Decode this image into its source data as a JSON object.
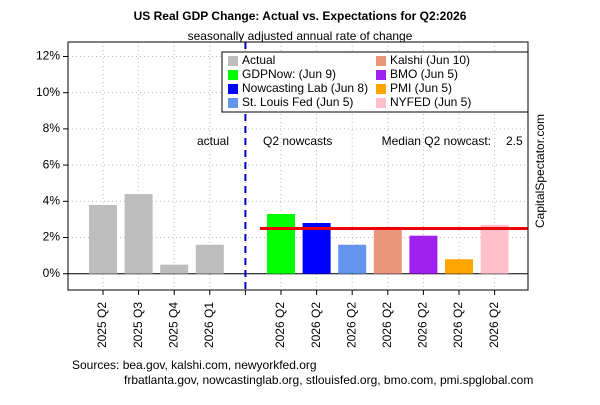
{
  "chart_data": {
    "type": "bar",
    "title": "US Real GDP Change: Actual vs. Expectations for Q2:2026",
    "subtitle": "seasonally adjusted annual rate of change",
    "categories": [
      "2025 Q2",
      "2025 Q3",
      "2025 Q4",
      "2026 Q1",
      null,
      "2026 Q2",
      "2026 Q2",
      "2026 Q2",
      "2026 Q2",
      "2026 Q2",
      "2026 Q2",
      "2026 Q2"
    ],
    "series": [
      {
        "name": "Actual",
        "color": "#bebebe",
        "values": [
          3.8,
          4.4,
          0.5,
          1.6,
          null,
          null,
          null,
          null,
          null,
          null,
          null,
          null
        ]
      },
      {
        "name": "GDPNow: (Jun 9)",
        "color": "#00ff00",
        "values": [
          null,
          null,
          null,
          null,
          null,
          3.3,
          null,
          null,
          null,
          null,
          null,
          null
        ]
      },
      {
        "name": "Nowcasting Lab (Jun 8)",
        "color": "#0000ff",
        "values": [
          null,
          null,
          null,
          null,
          null,
          null,
          2.8,
          null,
          null,
          null,
          null,
          null
        ]
      },
      {
        "name": "St. Louis Fed (Jun 5)",
        "color": "#6495ed",
        "values": [
          null,
          null,
          null,
          null,
          null,
          null,
          null,
          1.6,
          null,
          null,
          null,
          null
        ]
      },
      {
        "name": "Kalshi (Jun 10)",
        "color": "#e9967a",
        "values": [
          null,
          null,
          null,
          null,
          null,
          null,
          null,
          null,
          2.5,
          null,
          null,
          null
        ]
      },
      {
        "name": "BMO (Jun 5)",
        "color": "#a020f0",
        "values": [
          null,
          null,
          null,
          null,
          null,
          null,
          null,
          null,
          null,
          2.1,
          null,
          null
        ]
      },
      {
        "name": "PMI (Jun 5)",
        "color": "#ffa500",
        "values": [
          null,
          null,
          null,
          null,
          null,
          null,
          null,
          null,
          null,
          null,
          0.8,
          null
        ]
      },
      {
        "name": "NYFED (Jun 5)",
        "color": "#ffc0cb",
        "values": [
          null,
          null,
          null,
          null,
          null,
          null,
          null,
          null,
          null,
          null,
          null,
          2.7
        ]
      }
    ],
    "ylim": [
      -0.9,
      12.8
    ],
    "yticks": [
      {
        "value": 0,
        "label": "0%"
      },
      {
        "value": 2,
        "label": "2%"
      },
      {
        "value": 4,
        "label": "4%"
      },
      {
        "value": 6,
        "label": "6%"
      },
      {
        "value": 8,
        "label": "8%"
      },
      {
        "value": 10,
        "label": "10%"
      },
      {
        "value": 12,
        "label": "12%"
      }
    ],
    "grid": true,
    "median": {
      "label": "Median Q2 nowcast:",
      "value": 2.5,
      "color": "#ee0000"
    },
    "annotations": [
      "actual",
      "Q2 nowcasts"
    ],
    "watermark": "CapitalSpectator.com",
    "sources": [
      "Sources: bea.gov, kalshi.com, newyorkfed.org",
      "frbatlanta.gov, nowcastinglab.org, stlouisfed.org, bmo.com, pmi.spglobal.com"
    ]
  }
}
